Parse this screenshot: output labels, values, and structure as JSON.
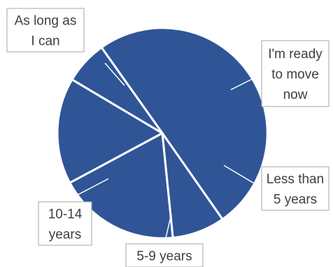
{
  "chart_data": {
    "type": "pie",
    "slice_color": "#2f5597",
    "border_color": "#ffffff",
    "start_angle_deg": -125.4,
    "slices": [
      {
        "label": [
          "As long as",
          "I can"
        ],
        "value": 47.5
      },
      {
        "label": [
          "I'm ready",
          "to move",
          "now"
        ],
        "value": 7.7
      },
      {
        "label": [
          "Less than",
          "5 years"
        ],
        "value": 17.8
      },
      {
        "label": [
          "5-9 years"
        ],
        "value": 15.5
      },
      {
        "label": [
          "10-14",
          "years"
        ],
        "value": 6.3
      }
    ]
  }
}
